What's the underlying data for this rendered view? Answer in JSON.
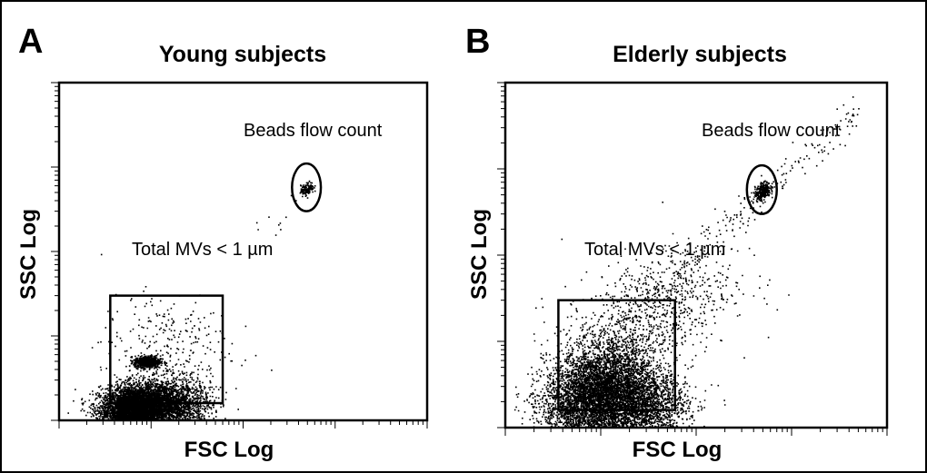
{
  "chart_data": [
    {
      "type": "scatter",
      "panel_letter": "A",
      "title": "Young subjects",
      "xlabel": "FSC Log",
      "ylabel": "SSC Log",
      "x_scale": "log",
      "y_scale": "log",
      "xlim": [
        1,
        10000
      ],
      "ylim": [
        1,
        10000
      ],
      "gates": [
        {
          "shape": "rectangle",
          "label": "Total MVs < 1 µm",
          "x": [
            3.6,
            60
          ],
          "y": [
            1.6,
            30
          ]
        },
        {
          "shape": "ellipse",
          "label": "Beads flow count",
          "x": [
            340,
            700
          ],
          "y": [
            300,
            1100
          ]
        }
      ],
      "populations": [
        {
          "name": "dense MV cluster",
          "x_center": 7,
          "y_center": 1.4,
          "relative_density": "very high"
        },
        {
          "name": "secondary MV cluster",
          "x_center": 9,
          "y_center": 5.0,
          "relative_density": "high"
        },
        {
          "name": "beads",
          "x_center": 490,
          "y_center": 560,
          "relative_density": "high"
        }
      ]
    },
    {
      "type": "scatter",
      "panel_letter": "B",
      "title": "Elderly subjects",
      "xlabel": "FSC Log",
      "ylabel": "SSC Log",
      "x_scale": "log",
      "y_scale": "log",
      "xlim": [
        1,
        10000
      ],
      "ylim": [
        1,
        10000
      ],
      "gates": [
        {
          "shape": "rectangle",
          "label": "Total MVs < 1 µm",
          "x": [
            3.6,
            60
          ],
          "y": [
            1.6,
            30
          ]
        },
        {
          "shape": "ellipse",
          "label": "Beads flow count",
          "x": [
            340,
            700
          ],
          "y": [
            300,
            1100
          ]
        }
      ],
      "populations": [
        {
          "name": "dense MV cloud",
          "x_center": 9,
          "y_center": 2.5,
          "relative_density": "very high"
        },
        {
          "name": "beads",
          "x_center": 490,
          "y_center": 560,
          "relative_density": "high"
        }
      ]
    }
  ]
}
